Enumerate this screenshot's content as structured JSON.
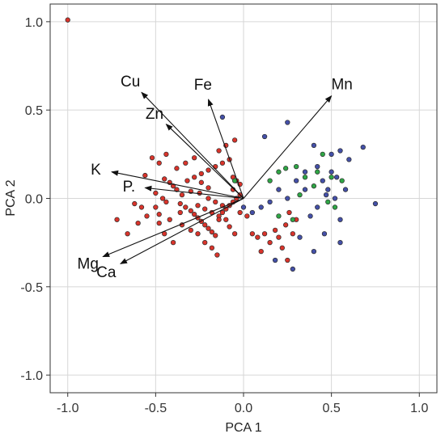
{
  "chart_data": {
    "type": "scatter",
    "title": "",
    "xlabel": "PCA 1",
    "ylabel": "PCA 2",
    "xlim": [
      -1.1,
      1.1
    ],
    "ylim": [
      -1.1,
      1.1
    ],
    "xticks": [
      -1.0,
      -0.5,
      0.0,
      0.5,
      1.0
    ],
    "yticks": [
      -1.0,
      -0.5,
      0.0,
      0.5,
      1.0
    ],
    "xtick_labels": [
      "-1.0",
      "-0.5",
      "0.0",
      "0.5",
      "1.0"
    ],
    "ytick_labels": [
      "-1.0",
      "-0.5",
      "0.0",
      "0.5",
      "1.0"
    ],
    "grid": true,
    "colors": {
      "red": "#d9342b",
      "blue": "#4450a8",
      "green": "#2fa646"
    },
    "loadings": [
      {
        "label": "Cu",
        "x": -0.58,
        "y": 0.6
      },
      {
        "label": "Fe",
        "x": -0.2,
        "y": 0.56
      },
      {
        "label": "Mn",
        "x": 0.5,
        "y": 0.58
      },
      {
        "label": "Zn",
        "x": -0.44,
        "y": 0.42
      },
      {
        "label": "K",
        "x": -0.75,
        "y": 0.15
      },
      {
        "label": "P.",
        "x": -0.56,
        "y": 0.06
      },
      {
        "label": "Mg",
        "x": -0.8,
        "y": -0.33
      },
      {
        "label": "Ca",
        "x": -0.7,
        "y": -0.37
      }
    ],
    "series": [
      {
        "color": "red",
        "points": [
          [
            -1.0,
            1.01
          ],
          [
            -0.52,
            0.23
          ],
          [
            -0.48,
            0.2
          ],
          [
            -0.56,
            0.13
          ],
          [
            -0.45,
            0.11
          ],
          [
            -0.42,
            0.09
          ],
          [
            -0.4,
            0.07
          ],
          [
            -0.38,
            0.05
          ],
          [
            -0.5,
            0.03
          ],
          [
            -0.46,
            0.0
          ],
          [
            -0.44,
            -0.02
          ],
          [
            -0.36,
            -0.03
          ],
          [
            -0.33,
            -0.05
          ],
          [
            -0.3,
            -0.07
          ],
          [
            -0.28,
            -0.09
          ],
          [
            -0.26,
            -0.11
          ],
          [
            -0.24,
            -0.13
          ],
          [
            -0.22,
            -0.15
          ],
          [
            -0.2,
            -0.17
          ],
          [
            -0.18,
            -0.19
          ],
          [
            -0.16,
            -0.21
          ],
          [
            -0.14,
            -0.1
          ],
          [
            -0.12,
            -0.08
          ],
          [
            -0.1,
            -0.06
          ],
          [
            -0.08,
            -0.04
          ],
          [
            -0.06,
            -0.02
          ],
          [
            -0.04,
            0.0
          ],
          [
            -0.02,
            0.02
          ],
          [
            -0.32,
            0.1
          ],
          [
            -0.28,
            0.12
          ],
          [
            -0.24,
            0.14
          ],
          [
            -0.2,
            0.16
          ],
          [
            -0.16,
            0.18
          ],
          [
            -0.12,
            0.2
          ],
          [
            -0.08,
            0.22
          ],
          [
            -0.1,
            0.3
          ],
          [
            -0.14,
            0.27
          ],
          [
            -0.05,
            0.33
          ],
          [
            -0.06,
            0.12
          ],
          [
            -0.04,
            0.1
          ],
          [
            -0.02,
            0.08
          ],
          [
            -0.35,
            -0.15
          ],
          [
            -0.3,
            -0.18
          ],
          [
            -0.26,
            -0.2
          ],
          [
            -0.22,
            -0.25
          ],
          [
            -0.18,
            -0.28
          ],
          [
            -0.15,
            -0.32
          ],
          [
            -0.4,
            -0.25
          ],
          [
            -0.45,
            -0.2
          ],
          [
            -0.55,
            -0.1
          ],
          [
            -0.6,
            -0.14
          ],
          [
            -0.66,
            -0.2
          ],
          [
            -0.72,
            -0.12
          ],
          [
            -0.5,
            -0.05
          ],
          [
            -0.42,
            -0.12
          ],
          [
            -0.35,
            0.02
          ],
          [
            -0.3,
            0.04
          ],
          [
            -0.25,
            0.03
          ],
          [
            -0.2,
            0.0
          ],
          [
            -0.16,
            -0.02
          ],
          [
            -0.12,
            -0.04
          ],
          [
            -0.1,
            -0.12
          ],
          [
            -0.08,
            -0.16
          ],
          [
            -0.05,
            -0.2
          ],
          [
            -0.02,
            -0.08
          ],
          [
            0.05,
            -0.2
          ],
          [
            0.08,
            -0.22
          ],
          [
            0.12,
            -0.2
          ],
          [
            0.15,
            -0.25
          ],
          [
            0.18,
            -0.18
          ],
          [
            0.2,
            -0.22
          ],
          [
            0.22,
            -0.28
          ],
          [
            0.24,
            -0.15
          ],
          [
            0.26,
            -0.08
          ],
          [
            0.28,
            -0.2
          ],
          [
            0.3,
            -0.12
          ],
          [
            0.25,
            -0.35
          ],
          [
            0.1,
            -0.3
          ],
          [
            -0.28,
            0.23
          ],
          [
            -0.33,
            0.2
          ],
          [
            -0.58,
            -0.05
          ],
          [
            -0.62,
            -0.03
          ],
          [
            -0.48,
            -0.14
          ],
          [
            -0.26,
            -0.04
          ],
          [
            -0.22,
            -0.06
          ],
          [
            -0.18,
            -0.08
          ],
          [
            -0.14,
            -0.12
          ],
          [
            -0.44,
            0.25
          ],
          [
            -0.38,
            0.17
          ],
          [
            -0.2,
            0.06
          ],
          [
            -0.24,
            0.09
          ],
          [
            -0.06,
            0.05
          ],
          [
            0.02,
            -0.1
          ],
          [
            -0.36,
            -0.08
          ],
          [
            -0.48,
            -0.09
          ]
        ]
      },
      {
        "color": "blue",
        "points": [
          [
            -0.12,
            0.46
          ],
          [
            0.12,
            0.35
          ],
          [
            0.25,
            0.43
          ],
          [
            0.4,
            0.3
          ],
          [
            0.5,
            0.25
          ],
          [
            0.55,
            0.27
          ],
          [
            0.6,
            0.22
          ],
          [
            0.68,
            0.29
          ],
          [
            0.75,
            -0.03
          ],
          [
            0.55,
            -0.12
          ],
          [
            0.45,
            0.1
          ],
          [
            0.48,
            0.05
          ],
          [
            0.52,
            0.0
          ],
          [
            0.42,
            -0.05
          ],
          [
            0.35,
            0.15
          ],
          [
            0.3,
            0.1
          ],
          [
            0.2,
            0.05
          ],
          [
            0.15,
            -0.02
          ],
          [
            0.1,
            -0.05
          ],
          [
            0.05,
            -0.08
          ],
          [
            0.0,
            -0.05
          ],
          [
            0.58,
            0.05
          ],
          [
            0.38,
            -0.1
          ],
          [
            0.32,
            -0.22
          ],
          [
            0.18,
            -0.35
          ],
          [
            0.28,
            -0.4
          ],
          [
            0.4,
            -0.3
          ],
          [
            0.55,
            -0.25
          ],
          [
            0.42,
            0.18
          ],
          [
            0.5,
            0.15
          ],
          [
            0.46,
            -0.2
          ],
          [
            0.35,
            0.05
          ],
          [
            0.25,
            0.0
          ],
          [
            0.47,
            0.02
          ],
          [
            0.53,
            0.12
          ]
        ]
      },
      {
        "color": "green",
        "points": [
          [
            -0.05,
            0.1
          ],
          [
            0.2,
            0.15
          ],
          [
            0.24,
            0.17
          ],
          [
            0.3,
            0.18
          ],
          [
            0.35,
            0.12
          ],
          [
            0.4,
            0.07
          ],
          [
            0.45,
            0.25
          ],
          [
            0.5,
            0.12
          ],
          [
            0.48,
            -0.02
          ],
          [
            0.52,
            -0.05
          ],
          [
            0.56,
            0.1
          ],
          [
            0.2,
            -0.1
          ],
          [
            0.28,
            -0.12
          ],
          [
            0.32,
            0.02
          ],
          [
            0.42,
            0.15
          ],
          [
            0.15,
            0.1
          ]
        ]
      }
    ]
  }
}
